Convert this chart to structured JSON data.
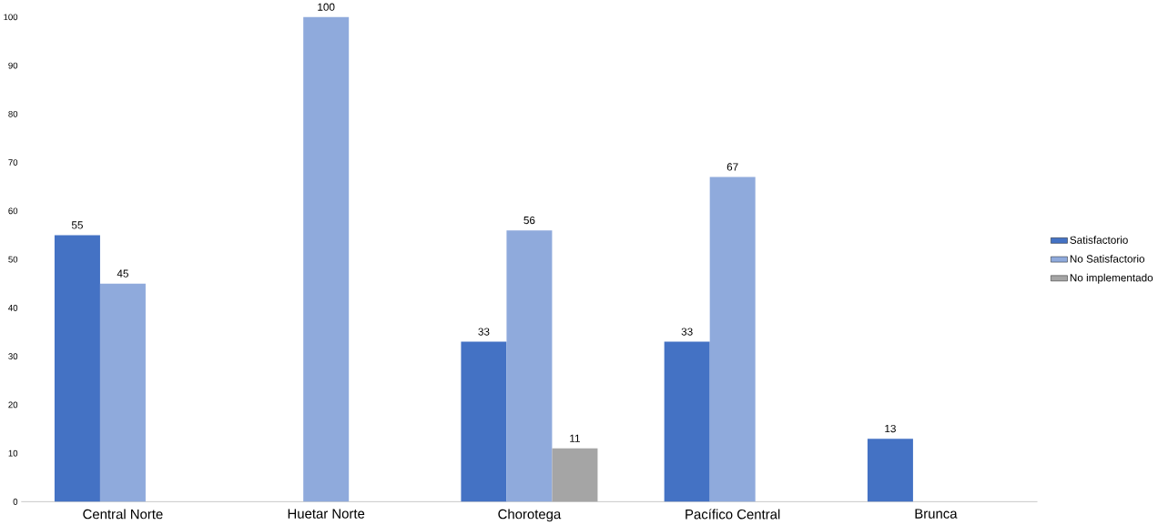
{
  "chart_data": {
    "type": "bar",
    "categories": [
      "Central Norte",
      "Huetar Norte",
      "Chorotega",
      "Pacífico Central",
      "Brunca"
    ],
    "series": [
      {
        "name": "Satisfactorio",
        "color": "#4472c4",
        "values": [
          55,
          null,
          33,
          33,
          13
        ]
      },
      {
        "name": "No Satisfactorio",
        "color": "#8faadc",
        "values": [
          45,
          100,
          56,
          67,
          null
        ]
      },
      {
        "name": "No implementado",
        "color": "#a5a5a5",
        "values": [
          null,
          null,
          11,
          null,
          null
        ]
      }
    ],
    "ylim": [
      0,
      100
    ],
    "yticks": [
      0,
      10,
      20,
      30,
      40,
      50,
      60,
      70,
      80,
      90,
      100
    ],
    "data_labels": true,
    "legend": "right"
  }
}
